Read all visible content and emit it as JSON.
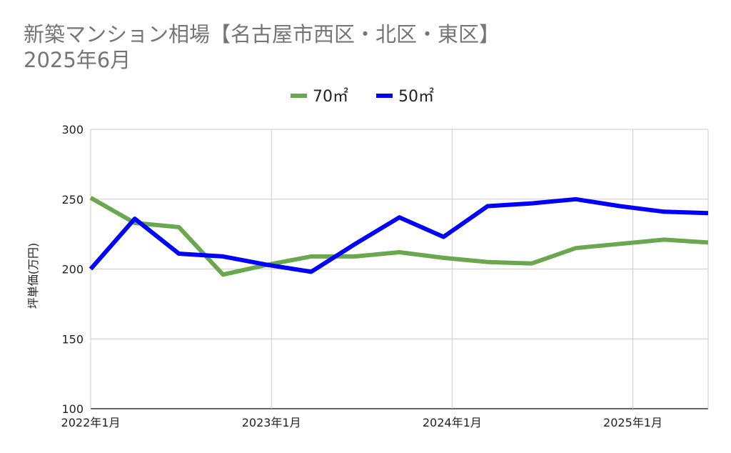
{
  "chart_data": {
    "type": "line",
    "title_line1": "新築マンション相場【名古屋市西区・北区・東区】",
    "title_line2": "2025年6月",
    "ylabel": "坪単価(万円)",
    "xlabel": "",
    "ylim": [
      100,
      300
    ],
    "yticks": [
      "300",
      "250",
      "200",
      "150",
      "100"
    ],
    "xticks": [
      "2022年1月",
      "2023年1月",
      "2024年1月",
      "2025年1月"
    ],
    "x": [
      "2022-01",
      "2022-04",
      "2022-07",
      "2022-10",
      "2023-01",
      "2023-04",
      "2023-07",
      "2023-10",
      "2024-01",
      "2024-04",
      "2024-07",
      "2024-10",
      "2025-01",
      "2025-04",
      "2025-06"
    ],
    "legend_position": "top",
    "grid": true,
    "series": [
      {
        "name": "70㎡",
        "color": "#6aa84f",
        "values": [
          251,
          233,
          230,
          196,
          203,
          209,
          209,
          212,
          208,
          205,
          204,
          215,
          218,
          221,
          219
        ]
      },
      {
        "name": "50㎡",
        "color": "#0000ff",
        "values": [
          200,
          236,
          211,
          209,
          203,
          198,
          218,
          237,
          223,
          245,
          247,
          250,
          245,
          241,
          240
        ]
      }
    ]
  }
}
